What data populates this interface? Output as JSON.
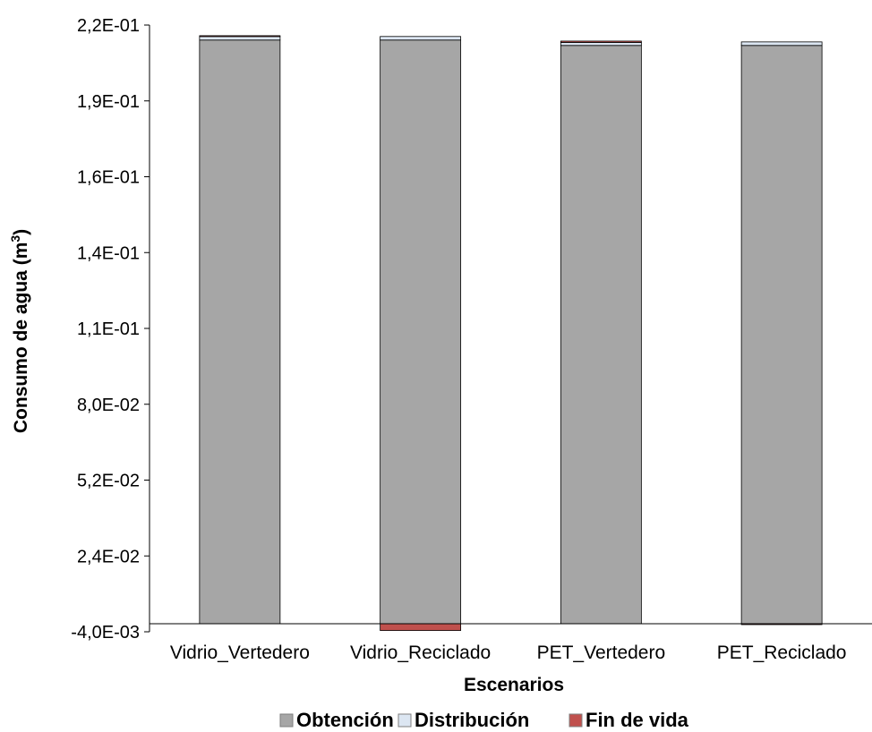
{
  "chart_data": {
    "type": "bar",
    "stacked": true,
    "categories": [
      "Vidrio_Vertedero",
      "Vidrio_Reciclado",
      "PET_Vertedero",
      "PET_Reciclado"
    ],
    "series": [
      {
        "name": "Obtención",
        "values": [
          0.2155,
          0.2155,
          0.2135,
          0.2135
        ],
        "color": "#a6a6a6"
      },
      {
        "name": "Distribución",
        "values": [
          0.0013,
          0.0013,
          0.0011,
          0.0013
        ],
        "color": "#dce6f2"
      },
      {
        "name": "Fin de vida",
        "values": [
          0.0003,
          -0.0025,
          0.0005,
          -0.0003
        ],
        "color": "#c0504d"
      }
    ],
    "tick_labels": [
      "-4,0E-03",
      "2,4E-02",
      "5,2E-02",
      "8,0E-02",
      "1,1E-01",
      "1,4E-01",
      "1,6E-01",
      "1,9E-01",
      "2,2E-01"
    ],
    "xlabel": "Escenarios",
    "ylabel": "Consumo de agua (m",
    "ylabel_sup": "3",
    "ylabel_end": ")",
    "ylim": [
      -0.004,
      0.22
    ],
    "grid": false,
    "legend_position": "bottom"
  }
}
